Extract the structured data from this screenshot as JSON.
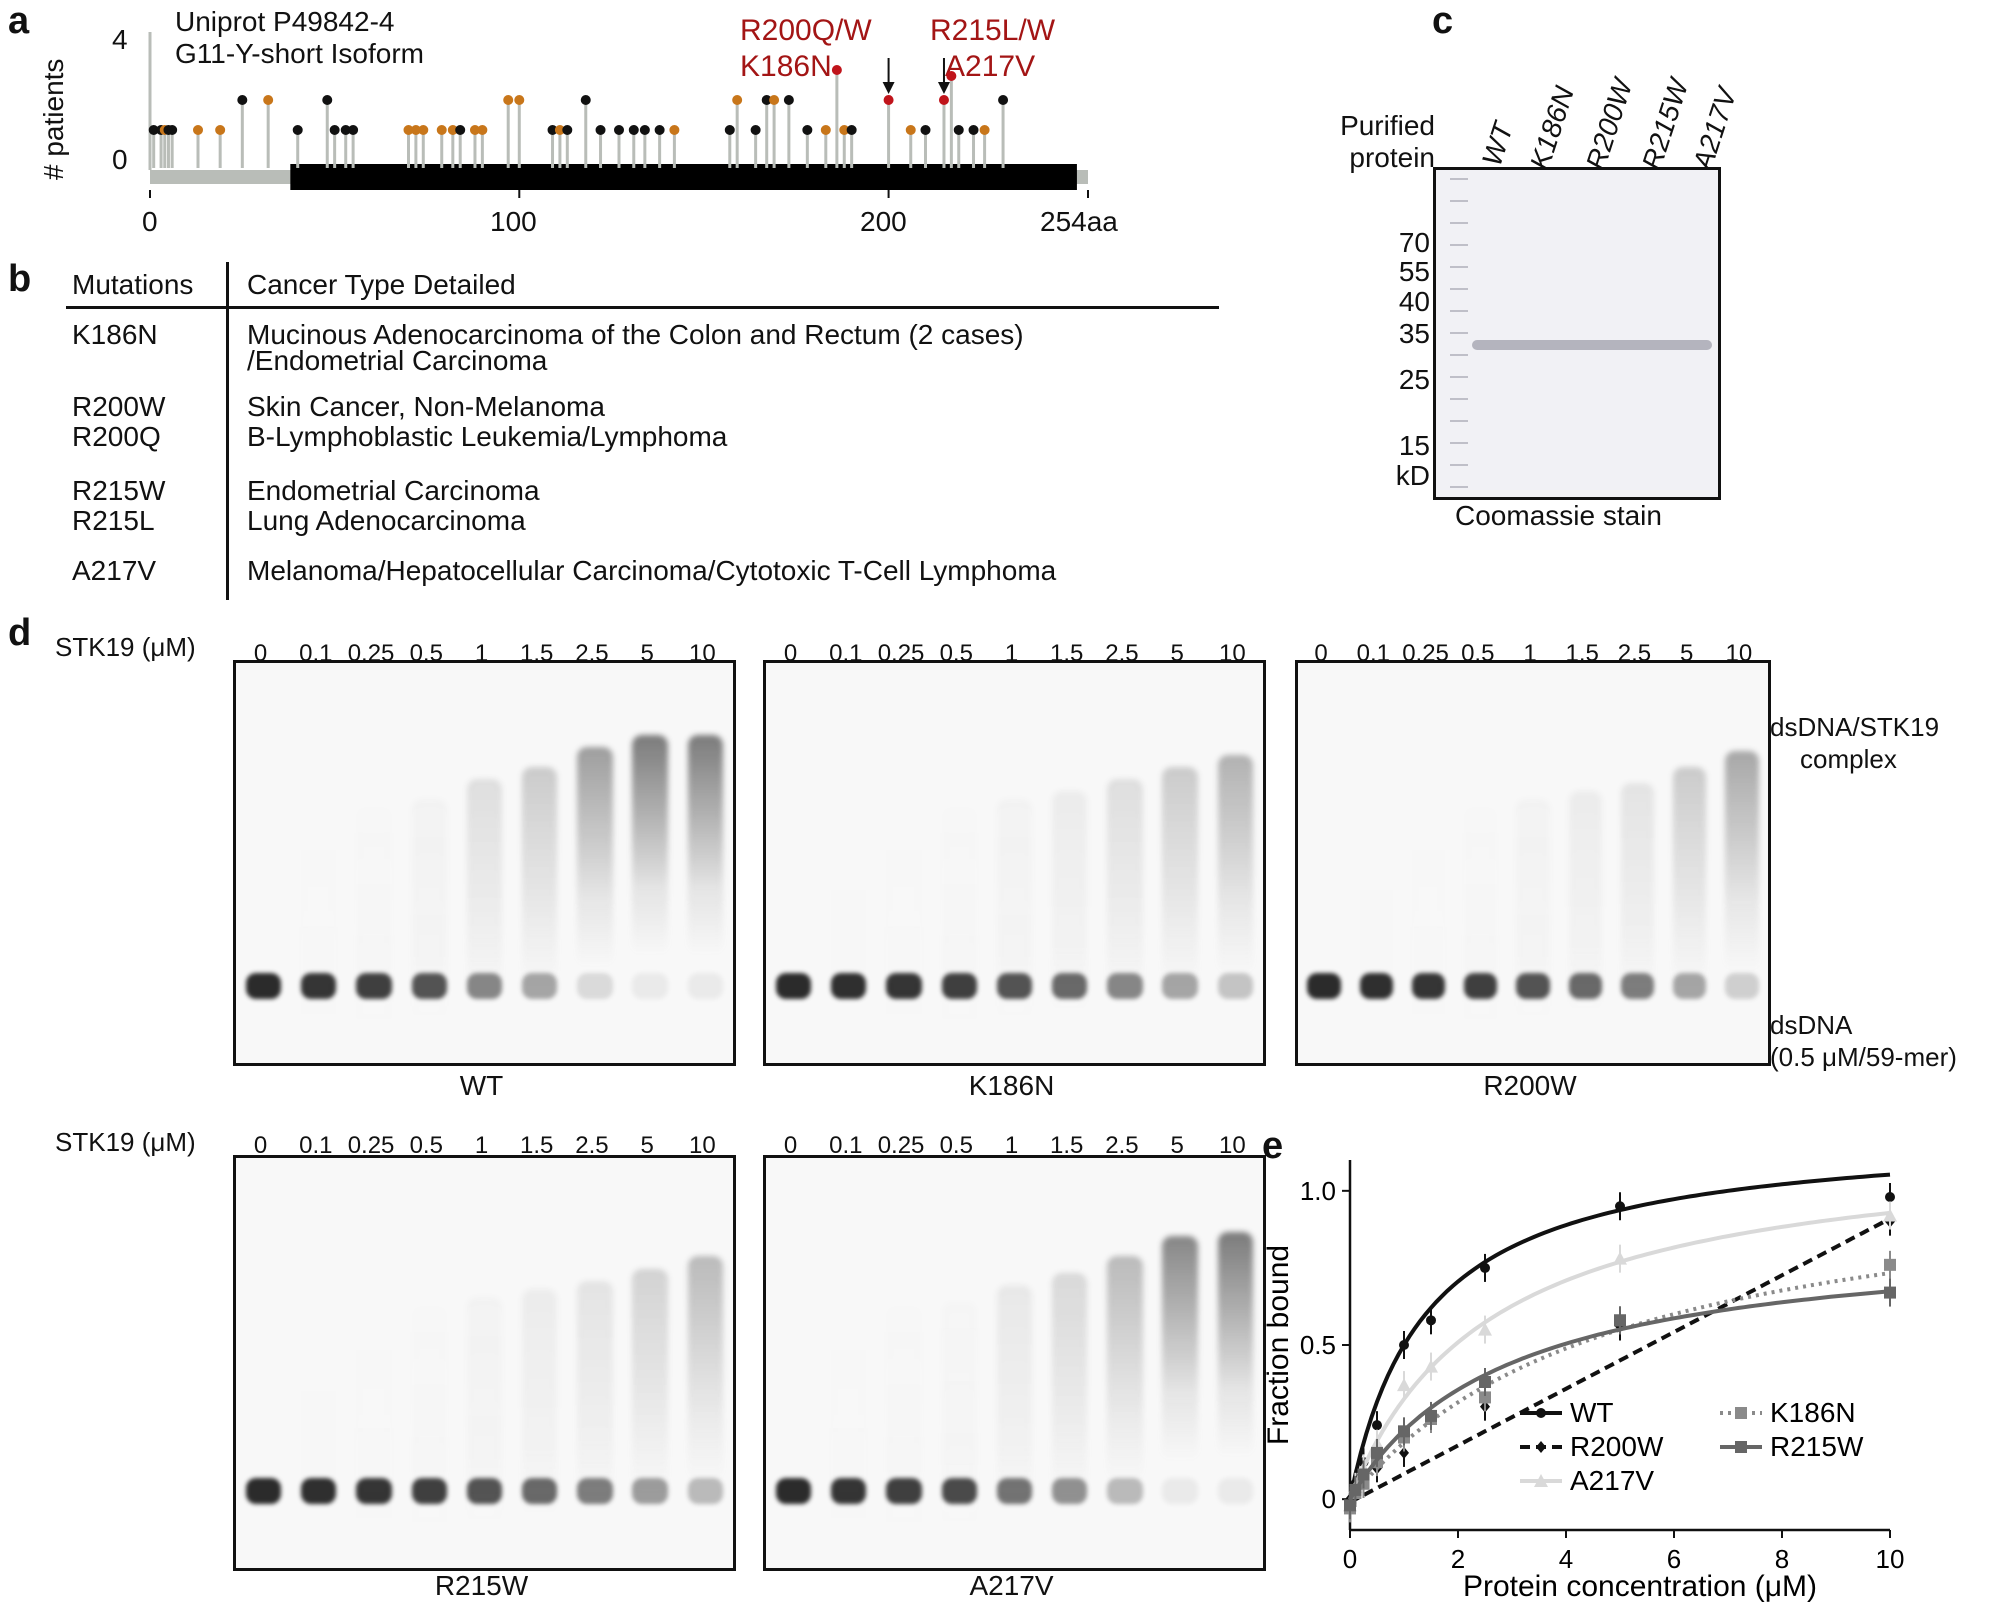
{
  "panels": {
    "a": "a",
    "b": "b",
    "c": "c",
    "d": "d",
    "e": "e"
  },
  "panel_a": {
    "title1": "Uniprot P49842-4",
    "title2": "G11-Y-short Isoform",
    "ylabel": "# patients",
    "yticks": [
      "4",
      "0"
    ],
    "xticks": [
      "0",
      "100",
      "200",
      "254aa"
    ],
    "callouts": {
      "r200": "R200Q/W",
      "r215": "R215L/W",
      "k186": "K186N",
      "a217": "A217V"
    },
    "domain_range": [
      38,
      251
    ],
    "protein_length": 254,
    "colors": {
      "black": "#111111",
      "orange": "#c8761a",
      "red": "#c0141b",
      "stem": "#b9bdb8"
    },
    "mutations": [
      {
        "pos": 1,
        "n": 1,
        "c": "black"
      },
      {
        "pos": 3,
        "n": 1,
        "c": "black"
      },
      {
        "pos": 4,
        "n": 1,
        "c": "orange"
      },
      {
        "pos": 5,
        "n": 1,
        "c": "black"
      },
      {
        "pos": 6,
        "n": 1,
        "c": "black"
      },
      {
        "pos": 13,
        "n": 1,
        "c": "orange"
      },
      {
        "pos": 19,
        "n": 1,
        "c": "orange"
      },
      {
        "pos": 25,
        "n": 2,
        "c": "black"
      },
      {
        "pos": 32,
        "n": 2,
        "c": "orange"
      },
      {
        "pos": 40,
        "n": 1,
        "c": "black"
      },
      {
        "pos": 48,
        "n": 2,
        "c": "black"
      },
      {
        "pos": 50,
        "n": 1,
        "c": "black"
      },
      {
        "pos": 53,
        "n": 1,
        "c": "black"
      },
      {
        "pos": 55,
        "n": 1,
        "c": "black"
      },
      {
        "pos": 70,
        "n": 1,
        "c": "orange"
      },
      {
        "pos": 72,
        "n": 1,
        "c": "orange"
      },
      {
        "pos": 74,
        "n": 1,
        "c": "orange"
      },
      {
        "pos": 79,
        "n": 1,
        "c": "orange"
      },
      {
        "pos": 82,
        "n": 1,
        "c": "orange"
      },
      {
        "pos": 84,
        "n": 1,
        "c": "black"
      },
      {
        "pos": 88,
        "n": 1,
        "c": "orange"
      },
      {
        "pos": 90,
        "n": 1,
        "c": "orange"
      },
      {
        "pos": 97,
        "n": 2,
        "c": "orange"
      },
      {
        "pos": 100,
        "n": 2,
        "c": "orange"
      },
      {
        "pos": 109,
        "n": 1,
        "c": "black"
      },
      {
        "pos": 111,
        "n": 1,
        "c": "orange"
      },
      {
        "pos": 113,
        "n": 1,
        "c": "black"
      },
      {
        "pos": 118,
        "n": 2,
        "c": "black"
      },
      {
        "pos": 122,
        "n": 1,
        "c": "black"
      },
      {
        "pos": 127,
        "n": 1,
        "c": "black"
      },
      {
        "pos": 131,
        "n": 1,
        "c": "black"
      },
      {
        "pos": 134,
        "n": 1,
        "c": "black"
      },
      {
        "pos": 138,
        "n": 1,
        "c": "black"
      },
      {
        "pos": 142,
        "n": 1,
        "c": "orange"
      },
      {
        "pos": 157,
        "n": 1,
        "c": "black"
      },
      {
        "pos": 159,
        "n": 2,
        "c": "orange"
      },
      {
        "pos": 164,
        "n": 1,
        "c": "black"
      },
      {
        "pos": 167,
        "n": 2,
        "c": "black"
      },
      {
        "pos": 169,
        "n": 2,
        "c": "orange"
      },
      {
        "pos": 173,
        "n": 2,
        "c": "black"
      },
      {
        "pos": 178,
        "n": 1,
        "c": "black"
      },
      {
        "pos": 183,
        "n": 1,
        "c": "orange"
      },
      {
        "pos": 186,
        "n": 3,
        "c": "red"
      },
      {
        "pos": 188,
        "n": 1,
        "c": "orange"
      },
      {
        "pos": 190,
        "n": 1,
        "c": "black"
      },
      {
        "pos": 200,
        "n": 2,
        "c": "red"
      },
      {
        "pos": 206,
        "n": 1,
        "c": "orange"
      },
      {
        "pos": 210,
        "n": 1,
        "c": "black"
      },
      {
        "pos": 215,
        "n": 2,
        "c": "red"
      },
      {
        "pos": 217,
        "n": 2.8,
        "c": "red"
      },
      {
        "pos": 219,
        "n": 1,
        "c": "black"
      },
      {
        "pos": 223,
        "n": 1,
        "c": "black"
      },
      {
        "pos": 226,
        "n": 1,
        "c": "orange"
      },
      {
        "pos": 231,
        "n": 2,
        "c": "black"
      }
    ]
  },
  "panel_b": {
    "header_mut": "Mutations",
    "header_type": "Cancer Type Detailed",
    "rows": [
      {
        "m1": "K186N",
        "m2": "",
        "t1": "Mucinous Adenocarcinoma of the Colon and Rectum (2 cases)",
        "t2": "/Endometrial Carcinoma"
      },
      {
        "m1": "R200W",
        "m2": "R200Q",
        "t1": "Skin Cancer, Non-Melanoma",
        "t2": "B-Lymphoblastic Leukemia/Lymphoma"
      },
      {
        "m1": "R215W",
        "m2": "R215L",
        "t1": "Endometrial Carcinoma",
        "t2": "Lung Adenocarcinoma"
      },
      {
        "m1": "A217V",
        "m2": "",
        "t1": "Melanoma/Hepatocellular Carcinoma/Cytotoxic T-Cell Lymphoma",
        "t2": ""
      }
    ]
  },
  "panel_c": {
    "purified1": "Purified",
    "purified2": "protein",
    "lanes": [
      "WT",
      "K186N",
      "R200W",
      "R215W",
      "A217V"
    ],
    "markers": [
      "70",
      "55",
      "40",
      "35",
      "25",
      "15"
    ],
    "unit": "kD",
    "caption": "Coomassie stain"
  },
  "panel_d": {
    "conc_label": "STK19 (μM)",
    "concs": [
      "0",
      "0.1",
      "0.25",
      "0.5",
      "1",
      "1.5",
      "2.5",
      "5",
      "10"
    ],
    "complex_label1": "dsDNA/STK19",
    "complex_label2": "complex",
    "dna_label1": "dsDNA",
    "dna_label2": "(0.5 μM/59-mer)",
    "gels": [
      {
        "name": "WT",
        "shift": [
          0,
          0.05,
          0.1,
          0.2,
          0.45,
          0.6,
          0.85,
          1,
          1
        ]
      },
      {
        "name": "K186N",
        "shift": [
          0,
          0.02,
          0.05,
          0.1,
          0.2,
          0.3,
          0.45,
          0.6,
          0.75
        ]
      },
      {
        "name": "R200W",
        "shift": [
          0,
          0.02,
          0.05,
          0.1,
          0.2,
          0.3,
          0.4,
          0.6,
          0.8
        ]
      },
      {
        "name": "R215W",
        "shift": [
          0,
          0.02,
          0.05,
          0.1,
          0.2,
          0.3,
          0.4,
          0.55,
          0.7
        ]
      },
      {
        "name": "A217V",
        "shift": [
          0,
          0.05,
          0.1,
          0.15,
          0.35,
          0.5,
          0.7,
          0.95,
          1
        ]
      }
    ]
  },
  "chart_data": {
    "type": "line",
    "xlabel": "Protein concentration (μM)",
    "ylabel": "Fraction bound",
    "xlim": [
      0,
      10
    ],
    "ylim": [
      -0.1,
      1.1
    ],
    "xticks": [
      0,
      2,
      4,
      6,
      8,
      10
    ],
    "yticks": [
      0,
      0.5,
      1.0
    ],
    "ytick_labels": [
      "0",
      "0.5",
      "1.0"
    ],
    "x": [
      0,
      0.1,
      0.25,
      0.5,
      1,
      1.5,
      2.5,
      5,
      10
    ],
    "legend_position": "bottom-right",
    "series": [
      {
        "name": "WT",
        "color": "#111111",
        "dash": "",
        "marker": "circle",
        "values": [
          -0.01,
          0.05,
          0.12,
          0.24,
          0.5,
          0.58,
          0.75,
          0.95,
          0.98
        ],
        "fit_kd": 1.4,
        "fit_bmax": 1.2
      },
      {
        "name": "R200W",
        "color": "#111111",
        "dash": "10,6",
        "marker": "diamond",
        "values": [
          0,
          0.02,
          0.05,
          0.1,
          0.15,
          0.26,
          0.3,
          0.56,
          0.9
        ],
        "fit": "linear",
        "fit_slope": 0.092
      },
      {
        "name": "A217V",
        "color": "#d9d9d9",
        "dash": "",
        "marker": "triangle",
        "values": [
          -0.02,
          0.04,
          0.1,
          0.18,
          0.37,
          0.43,
          0.55,
          0.78,
          0.92
        ],
        "fit_kd": 2.6,
        "fit_bmax": 1.17
      },
      {
        "name": "K186N",
        "color": "#8a8a8a",
        "dash": "3,5",
        "marker": "square",
        "values": [
          -0.03,
          0.02,
          0.05,
          0.12,
          0.2,
          0.26,
          0.33,
          0.58,
          0.76
        ],
        "fit_kd": 5.0,
        "fit_bmax": 1.1
      },
      {
        "name": "R215W",
        "color": "#666666",
        "dash": "",
        "marker": "square",
        "values": [
          -0.02,
          0.03,
          0.08,
          0.15,
          0.22,
          0.27,
          0.38,
          0.58,
          0.67
        ],
        "fit_kd": 2.9,
        "fit_bmax": 0.87
      }
    ]
  }
}
